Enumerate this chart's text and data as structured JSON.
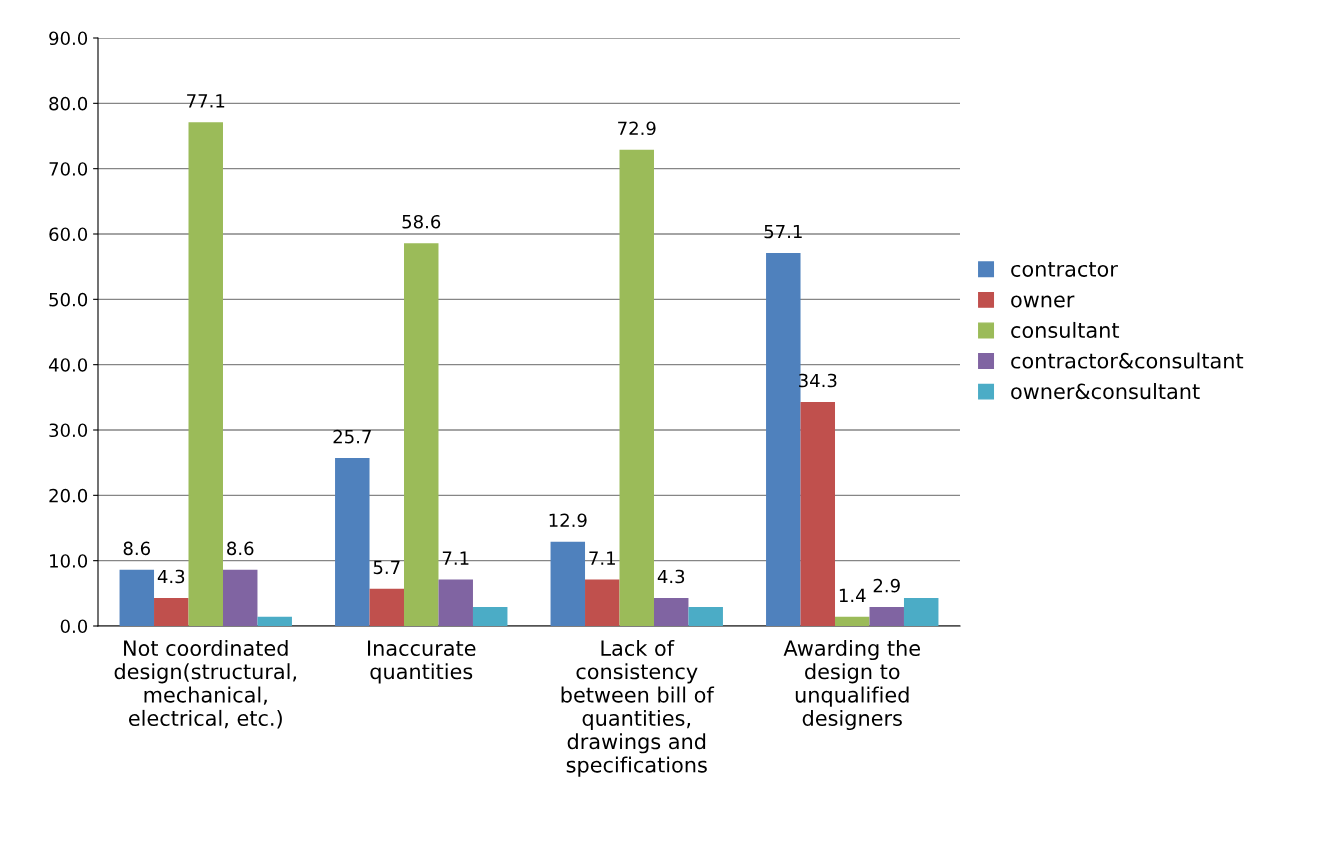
{
  "chart_data": {
    "type": "bar",
    "categories": [
      "Not coordinated\ndesign(structural,\nmechanical,\nelectrical, etc.)",
      "Inaccurate\nquantities",
      "Lack of\nconsistency\nbetween bill of\nquantities,\ndrawings and\nspecifications",
      "Awarding the\ndesign to\nunqualified\ndesigners"
    ],
    "series": [
      {
        "name": "contractor",
        "color": "#4f81bd",
        "values": [
          8.6,
          25.7,
          12.9,
          57.1
        ],
        "value_labels": [
          "8.6",
          "25.7",
          "12.9",
          "57.1"
        ]
      },
      {
        "name": "owner",
        "color": "#c0504d",
        "values": [
          4.3,
          5.7,
          7.1,
          34.3
        ],
        "value_labels": [
          "4.3",
          "5.7",
          "7.1",
          "34.3"
        ]
      },
      {
        "name": "consultant",
        "color": "#9bbb59",
        "values": [
          77.1,
          58.6,
          72.9,
          1.4
        ],
        "value_labels": [
          "77.1",
          "58.6",
          "72.9",
          "1.4"
        ]
      },
      {
        "name": "contractor&consultant",
        "color": "#8064a2",
        "values": [
          8.6,
          7.1,
          4.3,
          2.9
        ],
        "value_labels": [
          "8.6",
          "7.1",
          "4.3",
          "2.9"
        ]
      },
      {
        "name": "owner&consultant",
        "color": "#4bacc6",
        "values": [
          1.4,
          2.9,
          2.9,
          4.3
        ],
        "value_labels": [
          null,
          null,
          null,
          null
        ]
      }
    ],
    "ylim": [
      0,
      90
    ],
    "yticks": [
      {
        "value": 0,
        "label": "0.0"
      },
      {
        "value": 10,
        "label": "10.0"
      },
      {
        "value": 20,
        "label": "20.0"
      },
      {
        "value": 30,
        "label": "30.0"
      },
      {
        "value": 40,
        "label": "40.0"
      },
      {
        "value": 50,
        "label": "50.0"
      },
      {
        "value": 60,
        "label": "60.0"
      },
      {
        "value": 70,
        "label": "70.0"
      },
      {
        "value": 80,
        "label": "80.0"
      },
      {
        "value": 90,
        "label": "90.0"
      }
    ],
    "grid": "y",
    "legend": "right"
  }
}
